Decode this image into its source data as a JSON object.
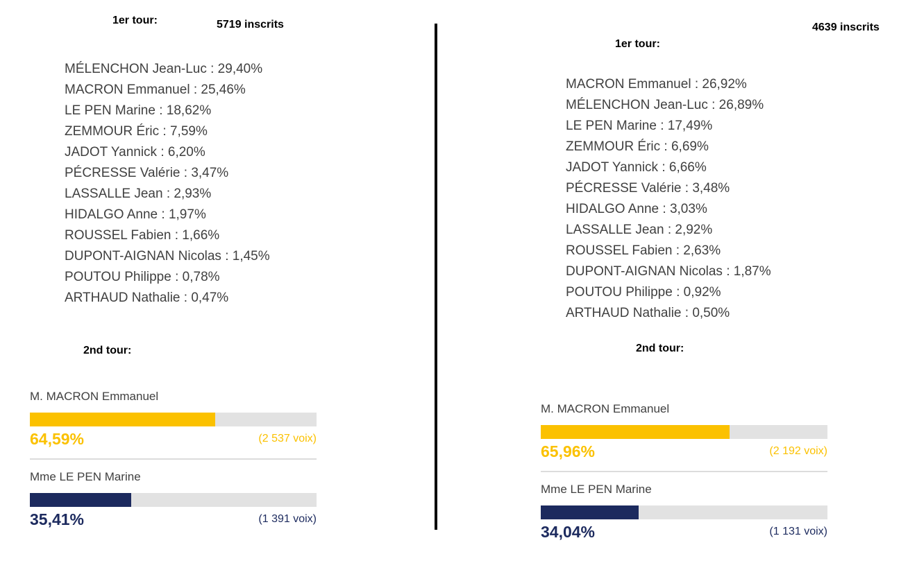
{
  "left": {
    "round1_title": "1er tour:",
    "registered": "5719 inscrits",
    "round1_results": [
      "MÉLENCHON Jean-Luc : 29,40%",
      "MACRON Emmanuel : 25,46%",
      "LE PEN Marine : 18,62%",
      "ZEMMOUR Éric : 7,59%",
      "JADOT Yannick : 6,20%",
      "PÉCRESSE Valérie : 3,47%",
      "LASSALLE Jean : 2,93%",
      "HIDALGO Anne : 1,97%",
      "ROUSSEL Fabien : 1,66%",
      "DUPONT-AIGNAN Nicolas : 1,45%",
      "POUTOU Philippe : 0,78%",
      "ARTHAUD Nathalie : 0,47%"
    ],
    "round2_title": "2nd tour:",
    "round2": [
      {
        "name": "M. MACRON Emmanuel",
        "percent_label": "64,59%",
        "share": 64.59,
        "votes": "(2 537 voix)",
        "color": "#fbc100"
      },
      {
        "name": "Mme LE PEN Marine",
        "percent_label": "35,41%",
        "share": 35.41,
        "votes": "(1 391 voix)",
        "color": "#1c2a5e"
      }
    ]
  },
  "right": {
    "round1_title": "1er tour:",
    "registered": "4639 inscrits",
    "round1_results": [
      "MACRON Emmanuel : 26,92%",
      "MÉLENCHON Jean-Luc : 26,89%",
      "LE PEN Marine : 17,49%",
      "ZEMMOUR Éric : 6,69%",
      "JADOT Yannick : 6,66%",
      "PÉCRESSE Valérie : 3,48%",
      "HIDALGO Anne : 3,03%",
      "LASSALLE Jean : 2,92%",
      "ROUSSEL Fabien : 2,63%",
      "DUPONT-AIGNAN Nicolas : 1,87%",
      "POUTOU Philippe : 0,92%",
      "ARTHAUD Nathalie : 0,50%"
    ],
    "round2_title": "2nd tour:",
    "round2": [
      {
        "name": "M. MACRON Emmanuel",
        "percent_label": "65,96%",
        "share": 65.96,
        "votes": "(2 192 voix)",
        "color": "#fbc100"
      },
      {
        "name": "Mme LE PEN Marine",
        "percent_label": "34,04%",
        "share": 34.04,
        "votes": "(1 131 voix)",
        "color": "#1c2a5e"
      }
    ]
  }
}
